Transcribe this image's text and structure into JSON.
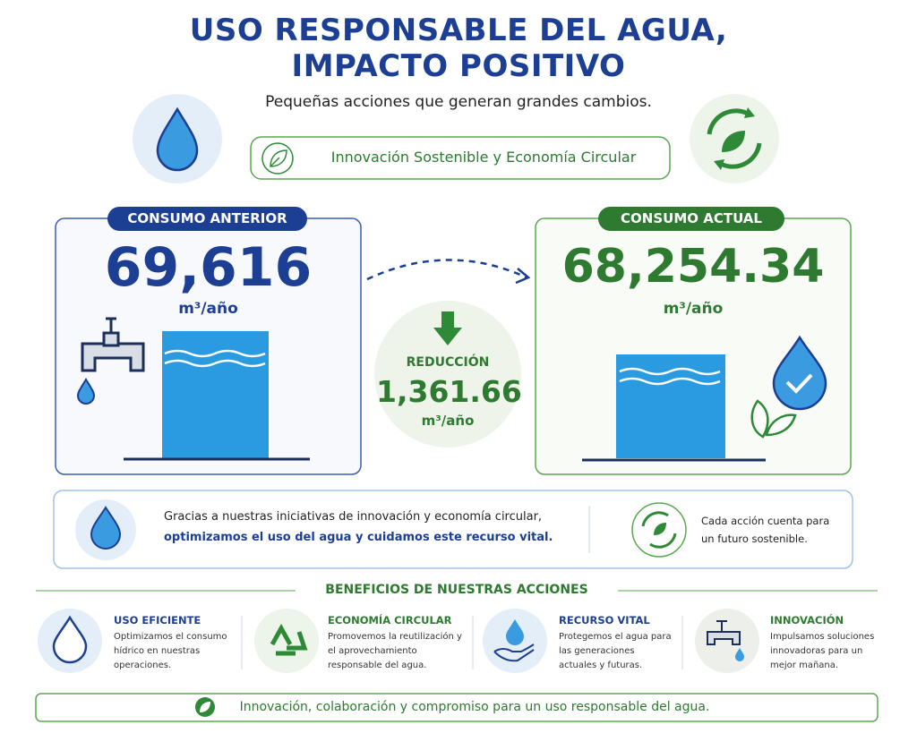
{
  "header": {
    "title_lines": [
      "USO RESPONSABLE DEL AGUA,",
      "IMPACTO POSITIVO"
    ],
    "subtitle": "Pequeñas acciones que generan grandes cambios.",
    "badge": "Innovación Sostenible y Economía Circular"
  },
  "previous": {
    "label": "CONSUMO ANTERIOR",
    "value": "69,616",
    "unit": "m³/año"
  },
  "current": {
    "label": "CONSUMO ACTUAL",
    "value": "68,254.34",
    "unit": "m³/año"
  },
  "reduction": {
    "label": "REDUCCIÓN",
    "value": "1,361.66",
    "unit": "m³/año"
  },
  "message": {
    "text": "Gracias a nuestras iniciativas de innovación y economía circular,",
    "highlight": "optimizamos el uso del agua y cuidamos este recurso vital.",
    "side": "Cada acción cuenta para un futuro sostenible."
  },
  "benefits": {
    "title": "BENEFICIOS DE NUESTRAS ACCIONES",
    "items": [
      {
        "title": "USO EFICIENTE",
        "text": "Optimizamos el consumo hídrico en nuestras operaciones."
      },
      {
        "title": "ECONOMÍA CIRCULAR",
        "text": "Promovemos la reutilización y el aprovechamiento responsable del agua."
      },
      {
        "title": "RECURSO VITAL",
        "text": "Protegemos el agua para las generaciones actuales y futuras."
      },
      {
        "title": "INNOVACIÓN",
        "text": "Impulsamos soluciones innovadoras para un mejor mañana."
      }
    ]
  },
  "footer": "Innovación, colaboración y compromiso para un uso responsable del agua."
}
